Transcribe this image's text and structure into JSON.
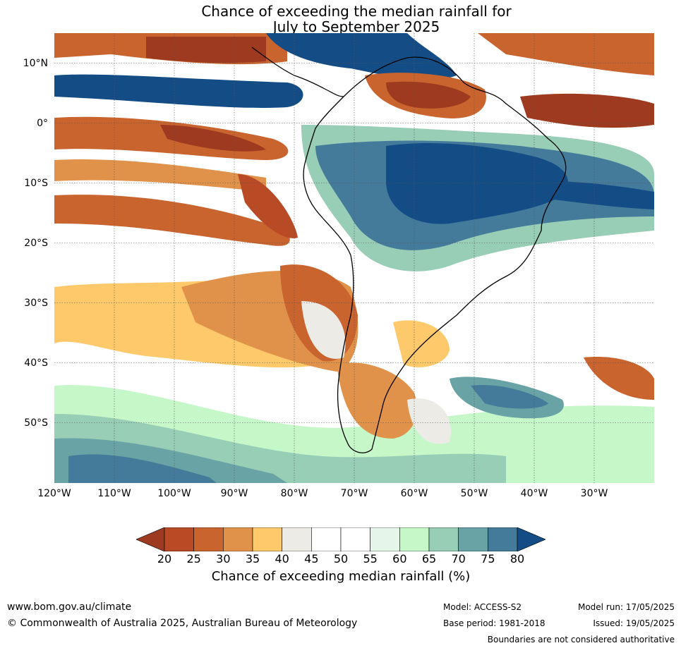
{
  "title": {
    "line1": "Chance of exceeding the median rainfall for",
    "line2": "July to September 2025"
  },
  "map": {
    "region": "South America and surrounding oceans",
    "lon_range": [
      -120,
      -20
    ],
    "lat_range": [
      -60,
      15
    ],
    "grid": true,
    "lat_labels": [
      "10°N",
      "0°",
      "10°S",
      "20°S",
      "30°S",
      "40°S",
      "50°S"
    ],
    "lat_values": [
      10,
      0,
      -10,
      -20,
      -30,
      -40,
      -50
    ],
    "lon_labels": [
      "120°W",
      "110°W",
      "100°W",
      "90°W",
      "80°W",
      "70°W",
      "60°W",
      "50°W",
      "40°W",
      "30°W"
    ],
    "lon_values": [
      -120,
      -110,
      -100,
      -90,
      -80,
      -70,
      -60,
      -50,
      -40,
      -30
    ]
  },
  "colorbar": {
    "ticks": [
      "20",
      "25",
      "30",
      "35",
      "40",
      "45",
      "50",
      "55",
      "60",
      "65",
      "70",
      "75",
      "80"
    ],
    "colors": [
      "#9e3a1f",
      "#b84a26",
      "#c9642f",
      "#e0924a",
      "#fdc96a",
      "#ecebe6",
      "#ffffff",
      "#ffffff",
      "#e6f5e9",
      "#c6f7c9",
      "#98cdb6",
      "#6aa3a6",
      "#457b9a",
      "#144d86"
    ],
    "label": "Chance of exceeding median rainfall (%)"
  },
  "footer": {
    "url": "www.bom.gov.au/climate",
    "copyright": "© Commonwealth of Australia 2025, Australian Bureau of Meteorology",
    "model": "Model: ACCESS-S2",
    "base_period": "Base period: 1981-2018",
    "model_run": "Model run: 17/05/2025",
    "issued": "Issued: 19/05/2025",
    "boundaries_note": "Boundaries are not considered authoritative"
  }
}
